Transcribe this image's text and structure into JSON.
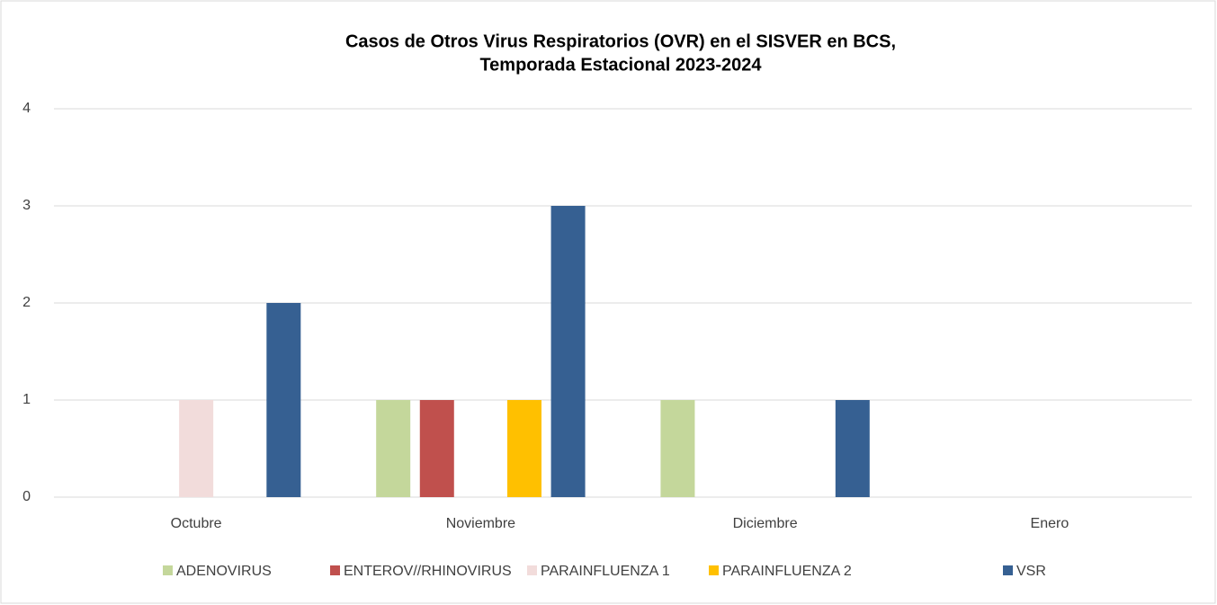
{
  "chart_data": {
    "type": "bar",
    "title": [
      "Casos de Otros Virus Respiratorios (OVR) en el SISVER en BCS,",
      "Temporada Estacional 2023-2024"
    ],
    "categories": [
      "Octubre",
      "Noviembre",
      "Diciembre",
      "Enero"
    ],
    "series": [
      {
        "name": "ADENOVIRUS",
        "color": "#c4d79b",
        "values": [
          0,
          1,
          1,
          0
        ]
      },
      {
        "name": "ENTEROV//RHINOVIRUS",
        "color": "#c0504d",
        "values": [
          0,
          1,
          0,
          0
        ]
      },
      {
        "name": "PARAINFLUENZA 1",
        "color": "#f2dcdb",
        "values": [
          1,
          0,
          0,
          0
        ]
      },
      {
        "name": "PARAINFLUENZA 2",
        "color": "#ffc000",
        "values": [
          0,
          1,
          0,
          0
        ]
      },
      {
        "name": "VSR",
        "color": "#366092",
        "values": [
          2,
          3,
          1,
          0
        ]
      }
    ],
    "ylim": [
      0,
      4
    ],
    "yticks": [
      0,
      1,
      2,
      3,
      4
    ],
    "grid": true,
    "legend": "bottom"
  }
}
